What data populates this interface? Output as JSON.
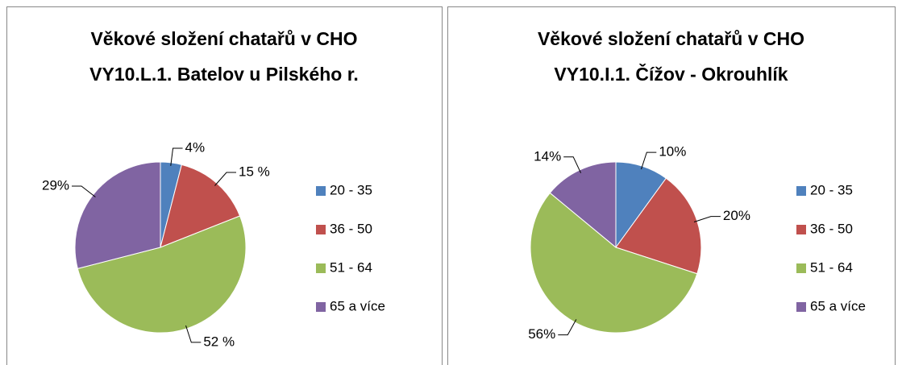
{
  "chart_data": [
    {
      "type": "pie",
      "title": [
        "Věkové složení chatařů v CHO",
        "VY10.L.1. Batelov u Pilského r."
      ],
      "categories": [
        "20 - 35",
        "36 - 50",
        "51 - 64",
        "65 a více"
      ],
      "values": [
        4,
        15,
        52,
        29
      ],
      "value_labels": [
        "4%",
        "15 %",
        "52 %",
        "29%"
      ],
      "colors": [
        "#4f81bd",
        "#c0504d",
        "#9bbb59",
        "#8064a2"
      ],
      "legend": "right"
    },
    {
      "type": "pie",
      "title": [
        "Věkové složení chatařů v CHO",
        "VY10.I.1. Čížov - Okrouhlík"
      ],
      "categories": [
        "20 - 35",
        "36 - 50",
        "51 - 64",
        "65 a více"
      ],
      "values": [
        10,
        20,
        56,
        14
      ],
      "value_labels": [
        "10%",
        "20%",
        "56%",
        "14%"
      ],
      "colors": [
        "#4f81bd",
        "#c0504d",
        "#9bbb59",
        "#8064a2"
      ],
      "legend": "right"
    }
  ]
}
